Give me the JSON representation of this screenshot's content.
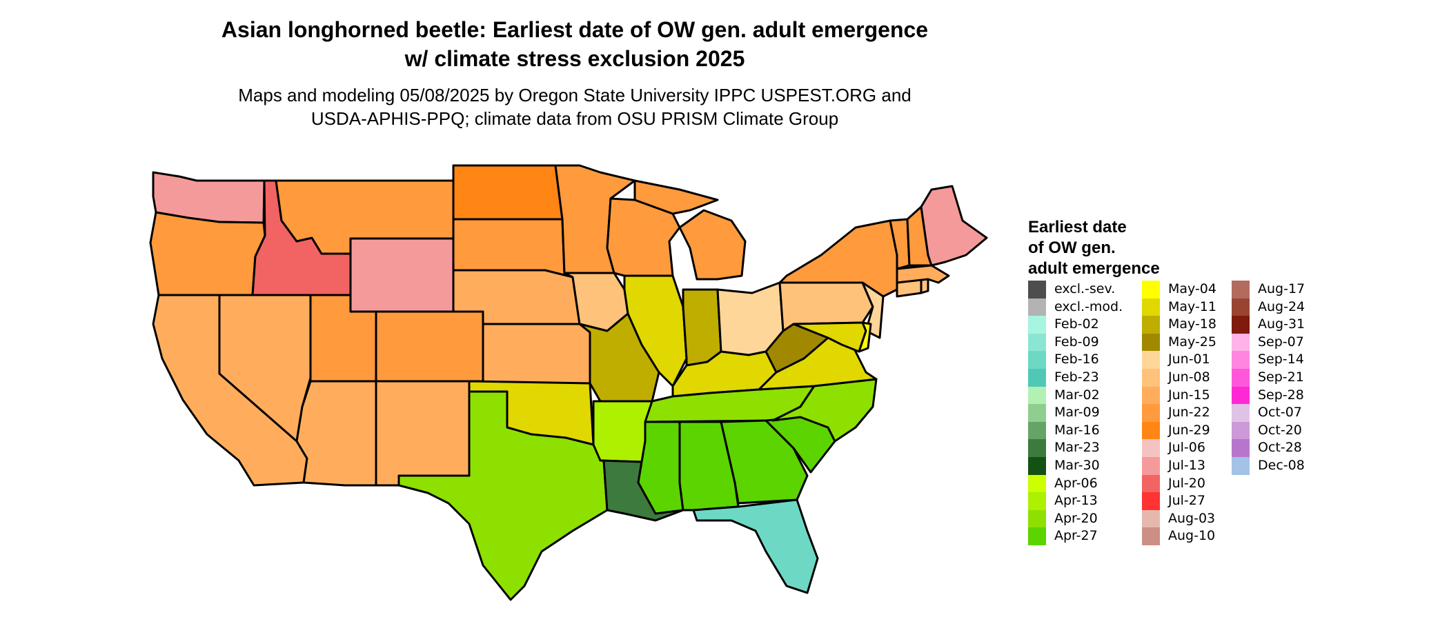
{
  "title": {
    "line1": "Asian longhorned beetle: Earliest date of OW gen. adult emergence",
    "line2": "w/ climate stress exclusion 2025"
  },
  "subtitle": {
    "line1": "Maps and modeling 05/08/2025 by Oregon State University IPPC USPEST.ORG and",
    "line2": "USDA-APHIS-PPQ; climate data from OSU PRISM Climate Group"
  },
  "legend": {
    "title_lines": [
      "Earliest date",
      "of OW gen.",
      "adult emergence"
    ],
    "items": [
      {
        "label": "excl.-sev.",
        "color": "#4d4d4d"
      },
      {
        "label": "excl.-mod.",
        "color": "#b3b3b3"
      },
      {
        "label": "Feb-02",
        "color": "#a6f5e1"
      },
      {
        "label": "Feb-09",
        "color": "#8ae6d2"
      },
      {
        "label": "Feb-16",
        "color": "#6dd9c4"
      },
      {
        "label": "Feb-23",
        "color": "#4fc9b5"
      },
      {
        "label": "Mar-02",
        "color": "#b3f0b3"
      },
      {
        "label": "Mar-09",
        "color": "#8fce8f"
      },
      {
        "label": "Mar-16",
        "color": "#66a366"
      },
      {
        "label": "Mar-23",
        "color": "#3d7a3d"
      },
      {
        "label": "Mar-30",
        "color": "#145214"
      },
      {
        "label": "Apr-06",
        "color": "#ccff00"
      },
      {
        "label": "Apr-13",
        "color": "#adf000"
      },
      {
        "label": "Apr-20",
        "color": "#8ee000"
      },
      {
        "label": "Apr-27",
        "color": "#5bd400"
      },
      {
        "label": "May-04",
        "color": "#ffff00"
      },
      {
        "label": "May-11",
        "color": "#e0d800"
      },
      {
        "label": "May-18",
        "color": "#bfad00"
      },
      {
        "label": "May-25",
        "color": "#a08900"
      },
      {
        "label": "Jun-01",
        "color": "#ffd699"
      },
      {
        "label": "Jun-08",
        "color": "#ffc27a"
      },
      {
        "label": "Jun-15",
        "color": "#ffad5c"
      },
      {
        "label": "Jun-22",
        "color": "#ff9a3d"
      },
      {
        "label": "Jun-29",
        "color": "#ff8514"
      },
      {
        "label": "Jul-06",
        "color": "#f5c2c2"
      },
      {
        "label": "Jul-13",
        "color": "#f59a9a"
      },
      {
        "label": "Jul-20",
        "color": "#f26363"
      },
      {
        "label": "Jul-27",
        "color": "#ff3333"
      },
      {
        "label": "Aug-03",
        "color": "#e6b8ad"
      },
      {
        "label": "Aug-10",
        "color": "#cc8f85"
      },
      {
        "label": "Aug-17",
        "color": "#b36b5e"
      },
      {
        "label": "Aug-24",
        "color": "#994433"
      },
      {
        "label": "Aug-31",
        "color": "#801a0d"
      },
      {
        "label": "Sep-07",
        "color": "#ffb3e6"
      },
      {
        "label": "Sep-14",
        "color": "#ff85e0"
      },
      {
        "label": "Sep-21",
        "color": "#ff57d9"
      },
      {
        "label": "Sep-28",
        "color": "#ff29d4"
      },
      {
        "label": "Oct-07",
        "color": "#e0c2e6"
      },
      {
        "label": "Oct-20",
        "color": "#cc99d9"
      },
      {
        "label": "Oct-28",
        "color": "#b875cc"
      },
      {
        "label": "Dec-08",
        "color": "#a3c2e6"
      }
    ]
  },
  "map": {
    "states": [
      {
        "name": "WA",
        "color": "#f59a9a",
        "label": ""
      },
      {
        "name": "OR",
        "color": "#ff9a3d",
        "label": ""
      },
      {
        "name": "CA",
        "color": "#ffad5c",
        "label": ""
      },
      {
        "name": "ID",
        "color": "#f26363",
        "label": ""
      },
      {
        "name": "NV",
        "color": "#ffad5c",
        "label": ""
      },
      {
        "name": "MT",
        "color": "#ff9a3d",
        "label": ""
      },
      {
        "name": "WY",
        "color": "#f59a9a",
        "label": ""
      },
      {
        "name": "UT",
        "color": "#ff9a3d",
        "label": ""
      },
      {
        "name": "AZ",
        "color": "#ffad5c",
        "label": ""
      },
      {
        "name": "CO",
        "color": "#ff9a3d",
        "label": ""
      },
      {
        "name": "NM",
        "color": "#ffad5c",
        "label": ""
      },
      {
        "name": "ND",
        "color": "#ff8514",
        "label": ""
      },
      {
        "name": "SD",
        "color": "#ff9a3d",
        "label": ""
      },
      {
        "name": "NE",
        "color": "#ffad5c",
        "label": ""
      },
      {
        "name": "KS",
        "color": "#ffad5c",
        "label": ""
      },
      {
        "name": "OK",
        "color": "#e0d800",
        "label": ""
      },
      {
        "name": "TX",
        "color": "#8ee000",
        "label": ""
      },
      {
        "name": "MN",
        "color": "#ff9a3d",
        "label": ""
      },
      {
        "name": "IA",
        "color": "#ffc27a",
        "label": ""
      },
      {
        "name": "MO",
        "color": "#bfad00",
        "label": ""
      },
      {
        "name": "AR",
        "color": "#adf000",
        "label": ""
      },
      {
        "name": "LA",
        "color": "#3d7a3d",
        "label": ""
      },
      {
        "name": "WI",
        "color": "#ff9a3d",
        "label": ""
      },
      {
        "name": "IL",
        "color": "#e0d800",
        "label": ""
      },
      {
        "name": "MS",
        "color": "#5bd400",
        "label": ""
      },
      {
        "name": "MI",
        "color": "#ff9a3d",
        "label": ""
      },
      {
        "name": "IN",
        "color": "#bfad00",
        "label": ""
      },
      {
        "name": "KY",
        "color": "#e0d800",
        "label": ""
      },
      {
        "name": "TN",
        "color": "#8ee000",
        "label": ""
      },
      {
        "name": "AL",
        "color": "#5bd400",
        "label": ""
      },
      {
        "name": "OH",
        "color": "#ffd699",
        "label": ""
      },
      {
        "name": "GA",
        "color": "#5bd400",
        "label": ""
      },
      {
        "name": "FL",
        "color": "#6dd9c4",
        "label": ""
      },
      {
        "name": "SC",
        "color": "#5bd400",
        "label": ""
      },
      {
        "name": "NC",
        "color": "#8ee000",
        "label": ""
      },
      {
        "name": "VA",
        "color": "#e0d800",
        "label": ""
      },
      {
        "name": "WV",
        "color": "#a08900",
        "label": ""
      },
      {
        "name": "PA",
        "color": "#ffc27a",
        "label": ""
      },
      {
        "name": "NY",
        "color": "#ff9a3d",
        "label": ""
      },
      {
        "name": "NJ",
        "color": "#ffd699",
        "label": ""
      },
      {
        "name": "MD",
        "color": "#e0d800",
        "label": ""
      },
      {
        "name": "DE",
        "color": "#ffff00",
        "label": ""
      },
      {
        "name": "CT",
        "color": "#ffc27a",
        "label": ""
      },
      {
        "name": "RI",
        "color": "#ffc27a",
        "label": ""
      },
      {
        "name": "MA",
        "color": "#ffad5c",
        "label": ""
      },
      {
        "name": "VT",
        "color": "#ff9a3d",
        "label": ""
      },
      {
        "name": "NH",
        "color": "#ff9a3d",
        "label": ""
      },
      {
        "name": "ME",
        "color": "#f59a9a",
        "label": ""
      }
    ]
  }
}
